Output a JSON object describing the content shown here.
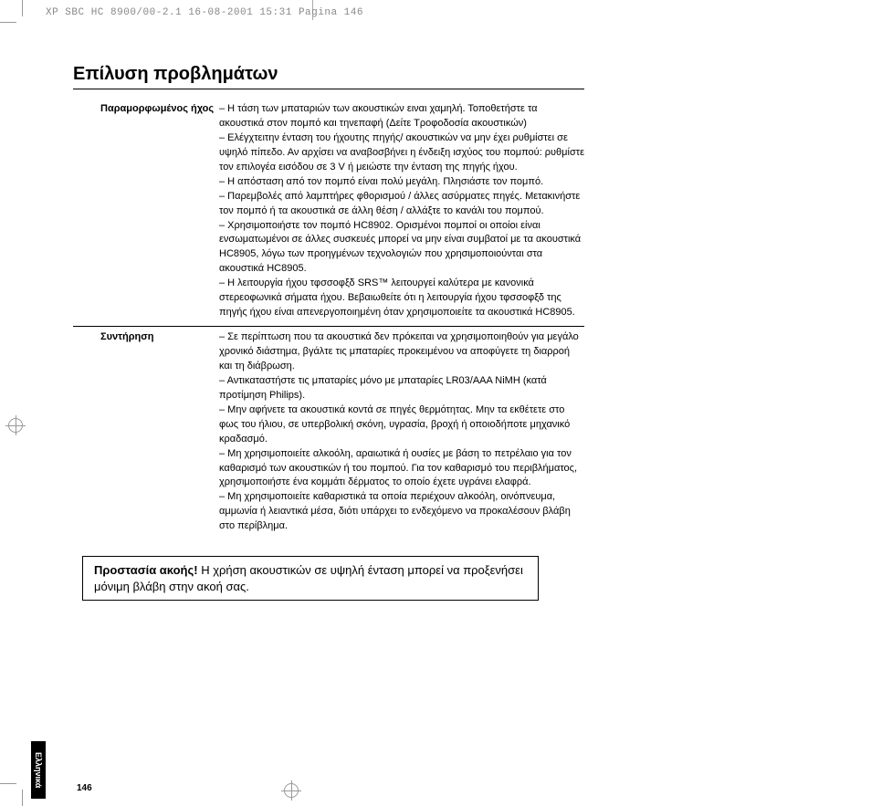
{
  "header": {
    "text": "XP SBC HC 8900/00-2.1  16-08-2001 15:31  Pagina 146"
  },
  "title": "Επίλυση προβλημάτων",
  "sections": [
    {
      "label": "Παραμορφωμένος ήχος",
      "body": "– Η τάση των μπαταριών των ακουστικών ειναι χαμηλή. Τοποθετήστε τα ακουστικά στον πομπό και τηνεπαφή (Δείτε Τροφοδοσία ακουστικών)\n– Ελέγχτειτην ένταση του ήχουτης πηγής/ ακουστικών να μην έχει ρυθμίστει σε υψηλό πίπεδο. Αν αρχίσει να αναβοσβήνει η ένδειξη ισχύος του πομπού: ρυθμίστε τον επιλογέα εισόδου σε 3 V ή μειώστε την ένταση της πηγής ήχου.\n– Η απόσταση από τον πομπό είναι πολύ μεγάλη. Πλησιάστε τον πομπό.\n– Παρεμβολές από λαμπτήρες φθορισμού / άλλες ασύρματες πηγές. Μετακινήστε τον πομπό ή τα ακουστικά σε άλλη θέση / αλλάξτε το κανάλι του πομπού.\n– Χρησιμοποιήστε τον πομπό HC8902. Ορισμένοι πομποί οι οποίοι είναι ενσωματωμένοι σε άλλες συσκευές μπορεί να μην είναι συμβατοί με τα ακουστικά HC8905, λόγω των προηγμένων τεχνολογιών που χρησιμοποιούνται στα ακουστικά HC8905.\n– Η λειτουργία ήχου τφσσοφξδ SRS™ λειτουργεί καλύτερα με κανονικά στερεοφωνικά σήματα ήχου. Βεβαιωθείτε ότι η λειτουργία ήχου τφσσοφξδ της πηγής ήχου είναι απενεργοποιημένη όταν χρησιμοποιείτε τα ακουστικά HC8905."
    },
    {
      "label": "Συντήρηση",
      "body": "– Σε περίπτωση που τα ακουστικά δεν πρόκειται να χρησιμοποιηθούν για μεγάλο χρονικό διάστημα, βγάλτε τις μπαταρίες προκειμένου να αποφύγετε τη διαρροή και τη διάβρωση.\n– Αντικαταστήστε τις μπαταρίες μόνο με μπαταρίες LR03/AAA NiMH (κατά προτίμηση Philips).\n– Μην αφήνετε τα ακουστικά κοντά σε πηγές θερμότητας. Μην τα εκθέτετε στο φως του ήλιου, σε υπερβολική σκόνη, υγρασία, βροχή ή οποιοδήποτε μηχανικό κραδασμό.\n– Μη χρησιμοποιείτε αλκοόλη, αραιωτικά ή ουσίες με βάση το πετρέλαιο για τον καθαρισμό των ακουστικών ή του πομπού. Για τον καθαρισμό του περιβλήματος, χρησιμοποιήστε ένα κομμάτι δέρματος το οποίο έχετε υγράνει ελαφρά.\n– Μη χρησιμοποιείτε καθαριστικά τα οποία περιέχουν αλκοόλη, οινόπνευμα, αμμωνία ή λειαντικά μέσα, διότι υπάρχει το ενδεχόμενο να προκαλέσουν βλάβη στο περίβλημα."
    }
  ],
  "warning": {
    "bold": "Προστασία ακοής!",
    "text": " Η χρήση ακουστικών σε υψηλή ένταση μπορεί να προξενήσει μόνιμη βλάβη στην ακοή σας."
  },
  "sidetab": "Ελληνικά",
  "pagenum": "146"
}
